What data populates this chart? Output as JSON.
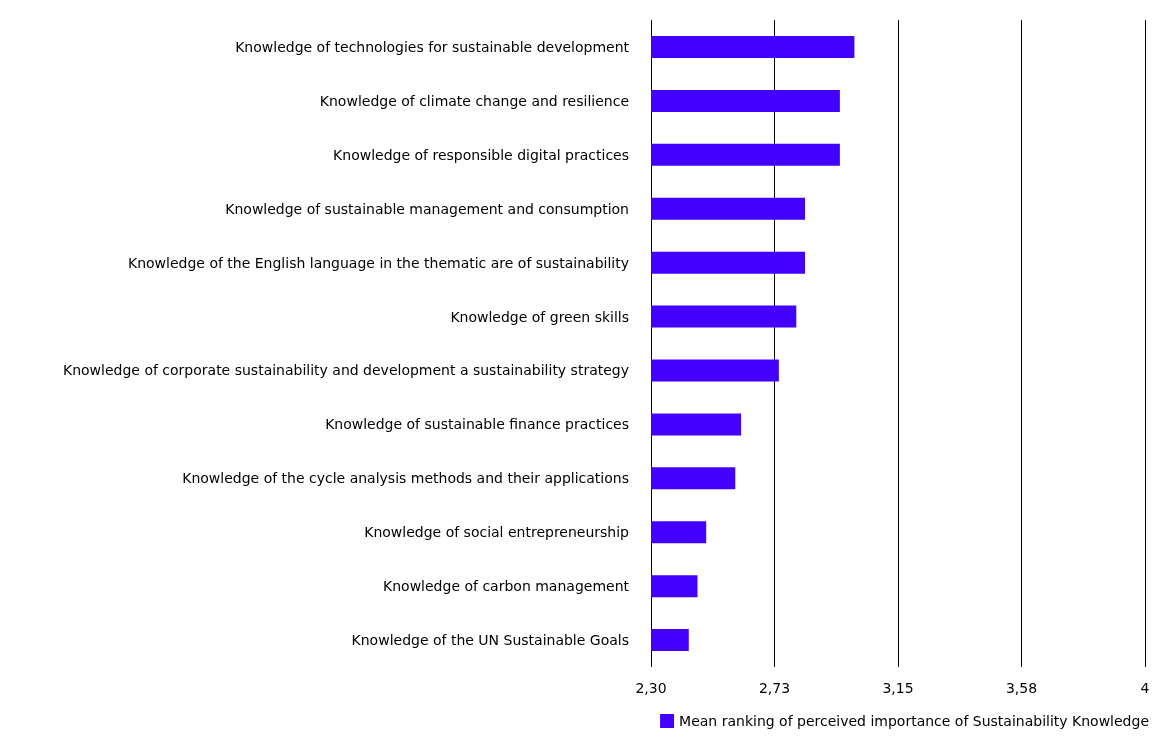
{
  "chart_data": {
    "type": "bar",
    "orientation": "horizontal",
    "categories": [
      "Knowledge of technologies for sustainable development",
      "Knowledge of climate change and resilience",
      "Knowledge of responsible digital practices",
      "Knowledge of sustainable management and consumption",
      "Knowledge of the English language in the thematic are of sustainability",
      "Knowledge of green skills",
      "Knowledge of corporate sustainability and development a sustainability strategy",
      "Knowledge of sustainable finance practices",
      "Knowledge of the cycle analysis methods and their applications",
      "Knowledge of social entrepreneurship",
      "Knowledge of carbon management",
      "Knowledge of the UN Sustainable Goals"
    ],
    "series": [
      {
        "name": "Mean ranking of perceived importance of Sustainability Knowledge",
        "color": "#4400ff",
        "values": [
          3.0,
          2.95,
          2.95,
          2.83,
          2.83,
          2.8,
          2.74,
          2.61,
          2.59,
          2.49,
          2.46,
          2.43
        ]
      }
    ],
    "xlim": [
      2.3,
      4
    ],
    "xticks": [
      {
        "value": 2.3,
        "label": "2,30"
      },
      {
        "value": 2.725,
        "label": "2,73"
      },
      {
        "value": 3.15,
        "label": "3,15"
      },
      {
        "value": 3.575,
        "label": "3,58"
      },
      4
    ],
    "grid": "x",
    "legend": "bottom right"
  }
}
